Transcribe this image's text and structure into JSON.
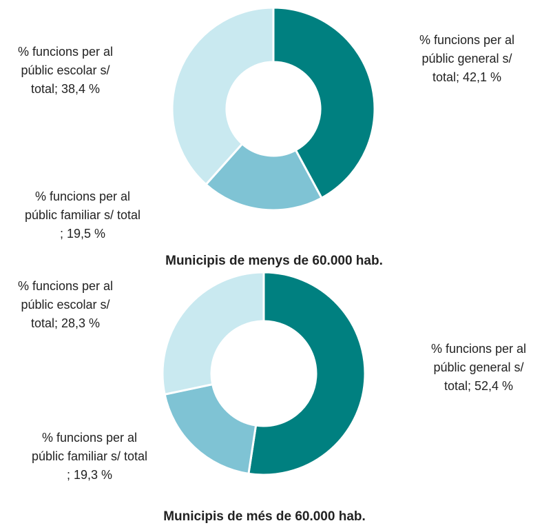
{
  "chart_data": [
    {
      "type": "pie",
      "title": "Municipis de menys de 60.000 hab.",
      "values": [
        42.1,
        19.5,
        38.4
      ],
      "value_labels": [
        "% funcions per al públic general s/ total; 42,1 %",
        "% funcions per al públic familiar s/ total ; 19,5 %",
        "% funcions per al públic escolar s/ total; 38,4 %"
      ],
      "colors": [
        "#008080",
        "#7fc3d4",
        "#c9e9f0"
      ]
    },
    {
      "type": "pie",
      "title": "Municipis de més de 60.000 hab.",
      "values": [
        52.4,
        19.3,
        28.3
      ],
      "value_labels": [
        "% funcions per al públic general s/ total; 52,4 %",
        "% funcions per al públic familiar s/ total ; 19,3 %",
        "% funcions per al públic escolar s/ total; 28,3 %"
      ],
      "colors": [
        "#008080",
        "#7fc3d4",
        "#c9e9f0"
      ]
    }
  ]
}
